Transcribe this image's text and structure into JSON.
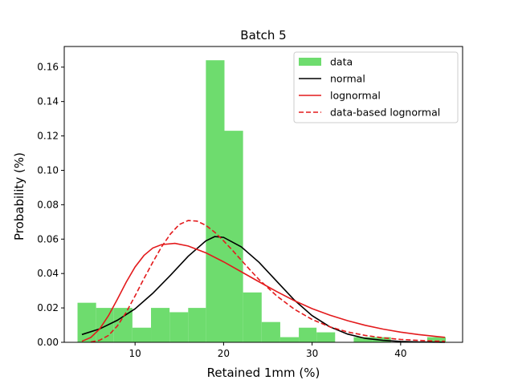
{
  "chart_data": {
    "type": "bar",
    "title": "Batch 5",
    "xlabel": "Retained 1mm (%)",
    "ylabel": "Probability (%)",
    "xlim": [
      2.0,
      47.0
    ],
    "ylim": [
      0,
      0.172
    ],
    "x_ticks": [
      10,
      20,
      30,
      40
    ],
    "y_ticks": [
      0.0,
      0.02,
      0.04,
      0.06,
      0.08,
      0.1,
      0.12,
      0.14,
      0.16
    ],
    "grid": false,
    "legend_position": "top-right",
    "histogram": {
      "name": "data",
      "color": "#6edc6e",
      "bins": [
        {
          "x0": 3.5,
          "x1": 5.6,
          "value": 0.023
        },
        {
          "x0": 5.6,
          "x1": 7.6,
          "value": 0.02
        },
        {
          "x0": 7.6,
          "x1": 9.7,
          "value": 0.02
        },
        {
          "x0": 9.7,
          "x1": 11.8,
          "value": 0.0085
        },
        {
          "x0": 11.8,
          "x1": 13.9,
          "value": 0.02
        },
        {
          "x0": 13.9,
          "x1": 16.0,
          "value": 0.0175
        },
        {
          "x0": 16.0,
          "x1": 18.0,
          "value": 0.02
        },
        {
          "x0": 18.0,
          "x1": 20.1,
          "value": 0.164
        },
        {
          "x0": 20.1,
          "x1": 22.2,
          "value": 0.123
        },
        {
          "x0": 22.2,
          "x1": 24.3,
          "value": 0.029
        },
        {
          "x0": 24.3,
          "x1": 26.4,
          "value": 0.0118
        },
        {
          "x0": 26.4,
          "x1": 28.5,
          "value": 0.003
        },
        {
          "x0": 28.5,
          "x1": 30.5,
          "value": 0.0085
        },
        {
          "x0": 30.5,
          "x1": 32.6,
          "value": 0.0058
        },
        {
          "x0": 32.6,
          "x1": 34.7,
          "value": 0.0
        },
        {
          "x0": 34.7,
          "x1": 36.8,
          "value": 0.003
        },
        {
          "x0": 36.8,
          "x1": 38.9,
          "value": 0.003
        },
        {
          "x0": 38.9,
          "x1": 40.9,
          "value": 0.0
        },
        {
          "x0": 40.9,
          "x1": 43.0,
          "value": 0.0
        },
        {
          "x0": 43.0,
          "x1": 45.1,
          "value": 0.003
        }
      ]
    },
    "series": [
      {
        "name": "normal",
        "color": "#000000",
        "dash": "solid",
        "x": [
          4,
          6,
          8,
          10,
          12,
          14,
          16,
          18,
          19,
          20,
          22,
          24,
          26,
          28,
          30,
          32,
          34,
          36,
          38,
          40,
          42,
          44,
          45
        ],
        "y": [
          0.0045,
          0.0078,
          0.0128,
          0.0195,
          0.0285,
          0.039,
          0.05,
          0.059,
          0.0615,
          0.061,
          0.0555,
          0.0465,
          0.0355,
          0.0245,
          0.0155,
          0.009,
          0.0048,
          0.0023,
          0.0011,
          0.0005,
          0.0002,
          0.0001,
          5e-05
        ]
      },
      {
        "name": "lognormal",
        "color": "#e31a1c",
        "dash": "solid",
        "x": [
          4,
          5,
          6,
          7,
          8,
          9,
          10,
          11,
          12,
          13,
          14.5,
          16,
          18,
          20,
          22,
          24,
          26,
          28,
          30,
          32,
          34,
          36,
          38,
          40,
          42,
          44,
          45
        ],
        "y": [
          0.0006,
          0.0028,
          0.0078,
          0.0155,
          0.025,
          0.035,
          0.0438,
          0.0505,
          0.0548,
          0.0568,
          0.0575,
          0.056,
          0.052,
          0.0468,
          0.041,
          0.0352,
          0.0295,
          0.0242,
          0.0196,
          0.0158,
          0.0126,
          0.0099,
          0.0077,
          0.0059,
          0.0045,
          0.0034,
          0.0029
        ]
      },
      {
        "name": "data-based lognormal",
        "color": "#e31a1c",
        "dash": "dashed",
        "x": [
          5,
          6,
          7,
          8,
          9,
          10,
          11,
          12,
          13,
          14,
          15,
          16,
          17,
          18,
          19,
          20,
          21,
          22,
          23,
          24,
          26,
          28,
          30,
          32,
          34,
          36,
          38,
          40,
          42,
          44,
          45
        ],
        "y": [
          0.0002,
          0.0012,
          0.004,
          0.0095,
          0.0175,
          0.027,
          0.037,
          0.0465,
          0.0555,
          0.063,
          0.0685,
          0.0708,
          0.0705,
          0.068,
          0.064,
          0.059,
          0.0535,
          0.0478,
          0.042,
          0.0365,
          0.027,
          0.0192,
          0.0133,
          0.009,
          0.006,
          0.004,
          0.0026,
          0.0017,
          0.0011,
          0.0007,
          0.0006
        ]
      }
    ]
  }
}
